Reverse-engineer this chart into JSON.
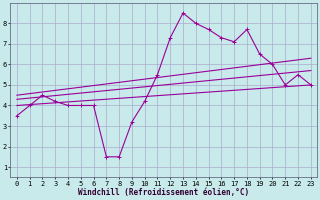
{
  "xlabel": "Windchill (Refroidissement éolien,°C)",
  "background_color": "#c8eaea",
  "grid_color": "#aaaacc",
  "line_color": "#990099",
  "x_values": [
    0,
    1,
    2,
    3,
    4,
    5,
    6,
    7,
    8,
    9,
    10,
    11,
    12,
    13,
    14,
    15,
    16,
    17,
    18,
    19,
    20,
    21,
    22,
    23
  ],
  "series1": [
    3.5,
    4.0,
    4.5,
    4.2,
    4.0,
    4.0,
    4.0,
    1.5,
    1.5,
    3.2,
    4.2,
    5.5,
    7.3,
    8.5,
    8.0,
    7.7,
    7.3,
    7.1,
    7.7,
    6.5,
    6.0,
    5.0,
    5.5,
    5.0
  ],
  "series2_x": [
    0,
    23
  ],
  "series2_y": [
    4.0,
    5.0
  ],
  "series3_x": [
    0,
    23
  ],
  "series3_y": [
    4.3,
    5.7
  ],
  "series4_x": [
    0,
    23
  ],
  "series4_y": [
    4.5,
    6.3
  ],
  "xlim": [
    -0.5,
    23.5
  ],
  "ylim": [
    0.5,
    9.0
  ],
  "yticks": [
    1,
    2,
    3,
    4,
    5,
    6,
    7,
    8
  ],
  "xticks": [
    0,
    1,
    2,
    3,
    4,
    5,
    6,
    7,
    8,
    9,
    10,
    11,
    12,
    13,
    14,
    15,
    16,
    17,
    18,
    19,
    20,
    21,
    22,
    23
  ],
  "tick_fontsize": 5,
  "xlabel_fontsize": 5.5
}
